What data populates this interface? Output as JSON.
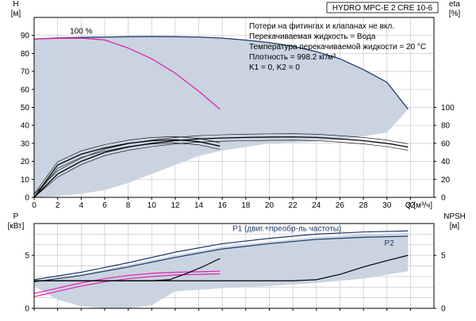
{
  "title_box": "HYDRO MPC-E 2 CRE 10-6",
  "notes": [
    "Потери на фитингах и клапанах не вкл.",
    "Перекачиваемая жидкость = Вода",
    "Температура перекачиваемой жидкости = 20 °C",
    "Плотность = 998.2 кг/м³",
    "K1 = 0, K2 = 0"
  ],
  "colors": {
    "envelope": "#c9d4e0",
    "navy": "#1f3a68",
    "magenta": "#e020b0",
    "black": "#000000",
    "grid": "#c8c8c8"
  },
  "chart_data": [
    {
      "type": "line",
      "name": "head-efficiency",
      "ylabel_left": [
        "H",
        "[м]"
      ],
      "ylabel_right": [
        "eta",
        "[%]"
      ],
      "xlabel": "Q [м³/ч]",
      "xlim": [
        0,
        34
      ],
      "ylim": [
        0,
        100
      ],
      "xticks": [
        0,
        2,
        4,
        6,
        8,
        10,
        12,
        14,
        16,
        18,
        20,
        22,
        24,
        26,
        28,
        30,
        32
      ],
      "yticks_left": [
        0,
        10,
        20,
        30,
        40,
        50,
        60,
        70,
        80,
        90
      ],
      "yticks_right": [
        0,
        20,
        40,
        60,
        80,
        100
      ],
      "right_axis_scale": {
        "eta_100_at_H": 50
      },
      "annotations": [
        {
          "text": "100 %",
          "x": 4.0,
          "y": 91
        }
      ],
      "envelope": [
        [
          0,
          88
        ],
        [
          2,
          88.6
        ],
        [
          4,
          88.9
        ],
        [
          6,
          89.1
        ],
        [
          8,
          89.3
        ],
        [
          10,
          89.4
        ],
        [
          12,
          89.3
        ],
        [
          14,
          89.1
        ],
        [
          16,
          88.5
        ],
        [
          18,
          87.4
        ],
        [
          20,
          86.0
        ],
        [
          22,
          84.0
        ],
        [
          24,
          81.0
        ],
        [
          26,
          77.0
        ],
        [
          28,
          71.0
        ],
        [
          30,
          64.0
        ],
        [
          31.8,
          49.0
        ],
        [
          30,
          36.0
        ],
        [
          28,
          34.0
        ],
        [
          26,
          32.0
        ],
        [
          24,
          31.0
        ],
        [
          22,
          30.5
        ],
        [
          20,
          30.0
        ],
        [
          18,
          28.0
        ],
        [
          16,
          26.0
        ],
        [
          14,
          23.0
        ],
        [
          12,
          18.0
        ],
        [
          10,
          13.0
        ],
        [
          8,
          8.0
        ],
        [
          6,
          4.0
        ],
        [
          4,
          2.0
        ],
        [
          2,
          0.7
        ],
        [
          0,
          0
        ]
      ],
      "series": [
        {
          "name": "Hmax",
          "color": "navy",
          "points": [
            [
              0,
              88
            ],
            [
              2,
              88.6
            ],
            [
              4,
              88.9
            ],
            [
              6,
              89.1
            ],
            [
              8,
              89.3
            ],
            [
              10,
              89.4
            ],
            [
              12,
              89.3
            ],
            [
              14,
              89.1
            ],
            [
              16,
              88.5
            ],
            [
              18,
              87.4
            ],
            [
              20,
              86.0
            ],
            [
              22,
              84.0
            ],
            [
              24,
              81.0
            ],
            [
              26,
              77.0
            ],
            [
              28,
              71.0
            ],
            [
              30,
              64.0
            ],
            [
              31.8,
              49.0
            ]
          ]
        },
        {
          "name": "H1pump",
          "color": "magenta",
          "points": [
            [
              0,
              88
            ],
            [
              2,
              88.4
            ],
            [
              4,
              88.5
            ],
            [
              6,
              87.5
            ],
            [
              8,
              83.0
            ],
            [
              10,
              77.0
            ],
            [
              12,
              69.0
            ],
            [
              14,
              59.0
            ],
            [
              15.8,
              49.0
            ]
          ]
        },
        {
          "name": "eta2",
          "color": "black",
          "points": [
            [
              0,
              0
            ],
            [
              2,
              13
            ],
            [
              4,
              20
            ],
            [
              6,
              25
            ],
            [
              8,
              28
            ],
            [
              10,
              30
            ],
            [
              12,
              31.5
            ],
            [
              14,
              32.5
            ],
            [
              16,
              33
            ],
            [
              18,
              33.3
            ],
            [
              20,
              33.5
            ],
            [
              22,
              33.6
            ],
            [
              24,
              33.3
            ],
            [
              26,
              32.5
            ],
            [
              28,
              31.5
            ],
            [
              30,
              30
            ],
            [
              31.8,
              28
            ]
          ]
        },
        {
          "name": "eta1",
          "color": "black",
          "points": [
            [
              0,
              0
            ],
            [
              2,
              18
            ],
            [
              4,
              24
            ],
            [
              6,
              27.5
            ],
            [
              8,
              30
            ],
            [
              10,
              31.5
            ],
            [
              12,
              32
            ],
            [
              14,
              31
            ],
            [
              15.8,
              28.5
            ]
          ]
        }
      ]
    },
    {
      "type": "line",
      "name": "power-npsh",
      "ylabel_left": [
        "P",
        "[кВт]"
      ],
      "ylabel_right": [
        "NPSH",
        "[м]"
      ],
      "xlim": [
        0,
        34
      ],
      "ylim": [
        0,
        8
      ],
      "yticks_left": [
        0,
        5
      ],
      "yticks_right": [
        0,
        5
      ],
      "labels": [
        {
          "text": "P1 (двиг.+преобр-ль частоты)",
          "x": 21.5,
          "y": 7.3,
          "color": "navy"
        },
        {
          "text": "P2",
          "x": 30.2,
          "y": 5.9,
          "color": "navy"
        }
      ],
      "envelope": [
        [
          0,
          2.6
        ],
        [
          4,
          3.2
        ],
        [
          8,
          4.1
        ],
        [
          12,
          5.0
        ],
        [
          16,
          5.8
        ],
        [
          20,
          6.3
        ],
        [
          24,
          6.7
        ],
        [
          28,
          7.0
        ],
        [
          31.8,
          7.1
        ],
        [
          31.8,
          3.5
        ],
        [
          28,
          2.8
        ],
        [
          24,
          2.4
        ],
        [
          20,
          2.1
        ],
        [
          16,
          1.9
        ],
        [
          12,
          1.6
        ],
        [
          10,
          0.3
        ],
        [
          8,
          0.0
        ],
        [
          6,
          0.0
        ],
        [
          4,
          0.2
        ],
        [
          2,
          0.8
        ],
        [
          0,
          2.1
        ]
      ],
      "series": [
        {
          "name": "P1",
          "color": "navy",
          "points": [
            [
              0,
              2.7
            ],
            [
              4,
              3.4
            ],
            [
              8,
              4.3
            ],
            [
              12,
              5.3
            ],
            [
              16,
              6.1
            ],
            [
              20,
              6.6
            ],
            [
              24,
              7.0
            ],
            [
              28,
              7.2
            ],
            [
              31.8,
              7.3
            ]
          ]
        },
        {
          "name": "P2",
          "color": "navy",
          "points": [
            [
              0,
              2.5
            ],
            [
              4,
              3.1
            ],
            [
              8,
              3.9
            ],
            [
              12,
              4.8
            ],
            [
              16,
              5.6
            ],
            [
              20,
              6.1
            ],
            [
              24,
              6.5
            ],
            [
              28,
              6.7
            ],
            [
              31.8,
              6.8
            ]
          ]
        },
        {
          "name": "P1pump",
          "color": "magenta",
          "points": [
            [
              0,
              1.4
            ],
            [
              2,
              1.9
            ],
            [
              4,
              2.4
            ],
            [
              6,
              2.8
            ],
            [
              8,
              3.1
            ],
            [
              10,
              3.3
            ],
            [
              12,
              3.4
            ],
            [
              14,
              3.45
            ],
            [
              15.8,
              3.5
            ]
          ]
        },
        {
          "name": "P2pump",
          "color": "magenta",
          "points": [
            [
              0,
              1.1
            ],
            [
              2,
              1.6
            ],
            [
              4,
              2.1
            ],
            [
              6,
              2.5
            ],
            [
              8,
              2.8
            ],
            [
              10,
              3.0
            ],
            [
              12,
              3.15
            ],
            [
              14,
              3.2
            ],
            [
              15.8,
              3.25
            ]
          ]
        },
        {
          "name": "NPSH2",
          "color": "black",
          "points": [
            [
              0,
              2.6
            ],
            [
              10,
              2.6
            ],
            [
              20,
              2.6
            ],
            [
              22,
              2.6
            ],
            [
              24,
              2.7
            ],
            [
              26,
              3.2
            ],
            [
              28,
              3.9
            ],
            [
              30,
              4.5
            ],
            [
              31.8,
              5.0
            ]
          ]
        },
        {
          "name": "NPSH1",
          "color": "black",
          "points": [
            [
              0,
              2.6
            ],
            [
              10,
              2.6
            ],
            [
              11.5,
              2.7
            ],
            [
              13,
              3.3
            ],
            [
              14.5,
              4.0
            ],
            [
              15.8,
              4.7
            ]
          ]
        }
      ]
    }
  ]
}
